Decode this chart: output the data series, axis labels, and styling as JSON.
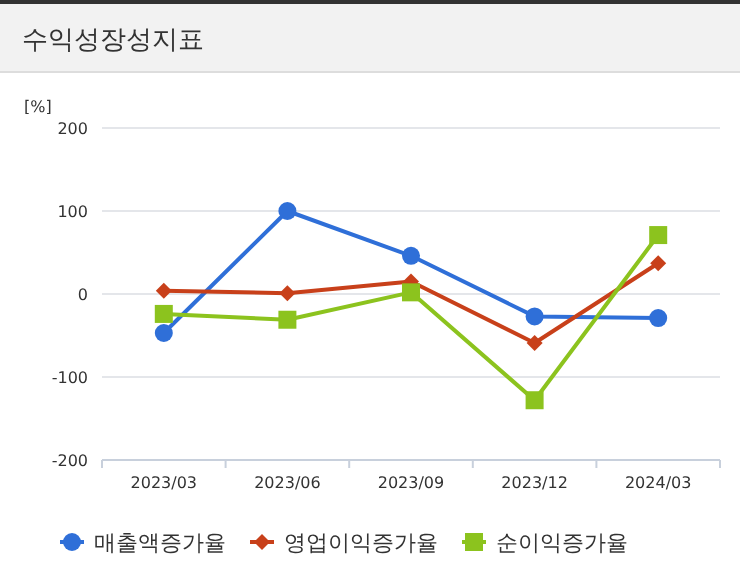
{
  "chart_data": {
    "type": "line",
    "title": "수익성장성지표",
    "ylabel": "[%]",
    "categories": [
      "2023/03",
      "2023/06",
      "2023/09",
      "2023/12",
      "2024/03"
    ],
    "series": [
      {
        "name": "매출액증가율",
        "color": "#2f6fd8",
        "marker": "circle",
        "values": [
          -47,
          100,
          46,
          -27,
          -29
        ]
      },
      {
        "name": "영업이익증가율",
        "color": "#c8401a",
        "marker": "diamond",
        "values": [
          4,
          1,
          15,
          -59,
          37
        ]
      },
      {
        "name": "순이익증가율",
        "color": "#8cc31e",
        "marker": "square",
        "values": [
          -24,
          -31,
          2,
          -128,
          71
        ]
      }
    ],
    "ylim": [
      -200,
      200
    ],
    "yticks": [
      -200,
      -100,
      0,
      100,
      200
    ],
    "grid": "y",
    "legend": "bottom"
  }
}
